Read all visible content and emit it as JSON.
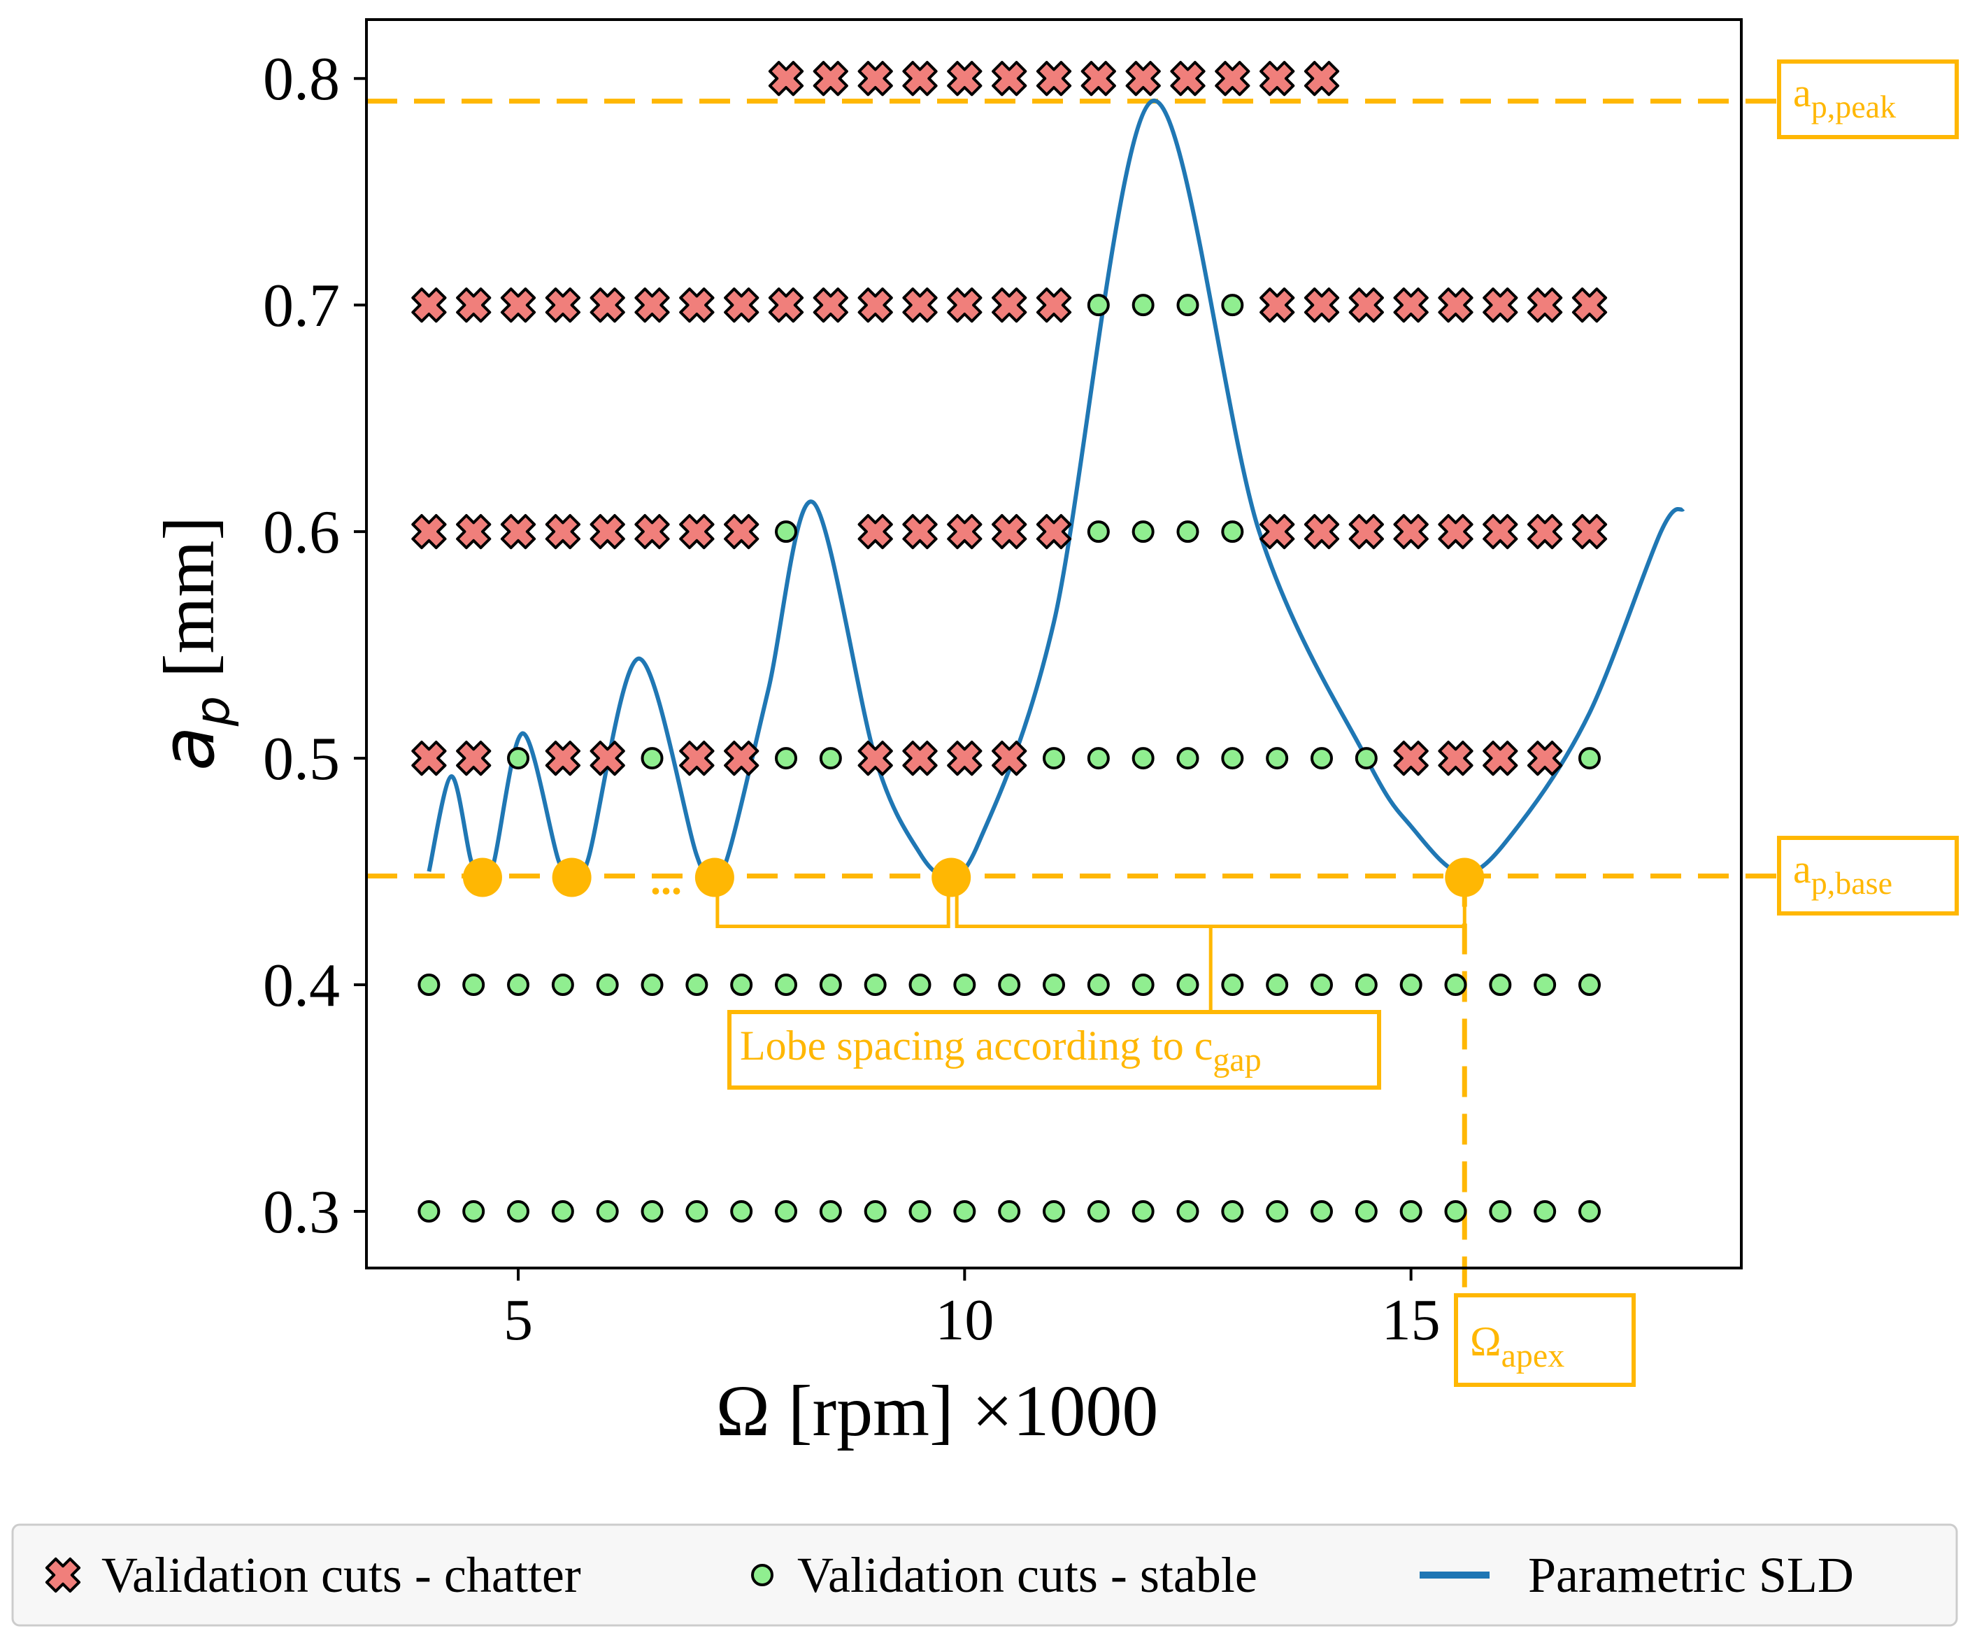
{
  "chart_data": {
    "type": "scatter",
    "title": "",
    "xlabel": "Ω [rpm] ×1000",
    "ylabel_symbol": "a",
    "ylabel_subscript": "p",
    "ylabel_unit": " [mm]",
    "xlim": [
      3.3,
      18.7
    ],
    "ylim": [
      0.275,
      0.826
    ],
    "x_ticks": [
      5,
      10,
      15
    ],
    "x_tick_labels": [
      "5",
      "10",
      "15"
    ],
    "y_ticks": [
      0.3,
      0.4,
      0.5,
      0.6,
      0.7,
      0.8
    ],
    "y_tick_labels": [
      "0.3",
      "0.4",
      "0.5",
      "0.6",
      "0.7",
      "0.8"
    ],
    "grid": false,
    "legend_position": "bottom",
    "series": [
      {
        "name": "Validation cuts - chatter",
        "marker": "x",
        "color": "#f07f7b",
        "rows": [
          {
            "ap": 0.8,
            "x": [
              8,
              8.5,
              9,
              9.5,
              10,
              10.5,
              11,
              11.5,
              12,
              12.5,
              13,
              13.5,
              14
            ]
          },
          {
            "ap": 0.7,
            "x": [
              4,
              4.5,
              5,
              5.5,
              6,
              6.5,
              7,
              7.5,
              8,
              8.5,
              9,
              9.5,
              10,
              10.5,
              11,
              13.5,
              14,
              14.5,
              15,
              15.5,
              16,
              16.5,
              17
            ]
          },
          {
            "ap": 0.6,
            "x": [
              4,
              4.5,
              5,
              5.5,
              6,
              6.5,
              7,
              7.5,
              9,
              9.5,
              10,
              10.5,
              11,
              13.5,
              14,
              14.5,
              15,
              15.5,
              16,
              16.5,
              17
            ]
          },
          {
            "ap": 0.5,
            "x": [
              4,
              4.5,
              5.5,
              6,
              7,
              7.5,
              9,
              9.5,
              10,
              10.5,
              15,
              15.5,
              16,
              16.5
            ]
          }
        ]
      },
      {
        "name": "Validation cuts - stable",
        "marker": "o",
        "color": "#90ee90",
        "rows": [
          {
            "ap": 0.7,
            "x": [
              11.5,
              12,
              12.5,
              13
            ]
          },
          {
            "ap": 0.6,
            "x": [
              8,
              11.5,
              12,
              12.5,
              13
            ]
          },
          {
            "ap": 0.5,
            "x": [
              5,
              6.5,
              8,
              8.5,
              11,
              11.5,
              12,
              12.5,
              13,
              13.5,
              14,
              14.5,
              17
            ]
          },
          {
            "ap": 0.4,
            "x": [
              4,
              4.5,
              5,
              5.5,
              6,
              6.5,
              7,
              7.5,
              8,
              8.5,
              9,
              9.5,
              10,
              10.5,
              11,
              11.5,
              12,
              12.5,
              13,
              13.5,
              14,
              14.5,
              15,
              15.5,
              16,
              16.5,
              17
            ]
          },
          {
            "ap": 0.3,
            "x": [
              4,
              4.5,
              5,
              5.5,
              6,
              6.5,
              7,
              7.5,
              8,
              8.5,
              9,
              9.5,
              10,
              10.5,
              11,
              11.5,
              12,
              12.5,
              13,
              13.5,
              14,
              14.5,
              15,
              15.5,
              16,
              16.5,
              17
            ]
          }
        ]
      },
      {
        "name": "Parametric SLD",
        "type": "line",
        "color": "#1f77b4",
        "points": [
          [
            4.0,
            0.45
          ],
          [
            4.25,
            0.492
          ],
          [
            4.47,
            0.455
          ],
          [
            4.58,
            0.449
          ],
          [
            4.72,
            0.453
          ],
          [
            5.05,
            0.511
          ],
          [
            5.45,
            0.455
          ],
          [
            5.6,
            0.449
          ],
          [
            5.78,
            0.455
          ],
          [
            6.35,
            0.544
          ],
          [
            7.0,
            0.457
          ],
          [
            7.18,
            0.449
          ],
          [
            7.35,
            0.457
          ],
          [
            7.8,
            0.53
          ],
          [
            8.3,
            0.613
          ],
          [
            9.0,
            0.5
          ],
          [
            9.5,
            0.458
          ],
          [
            9.8,
            0.449
          ],
          [
            10.15,
            0.462
          ],
          [
            11.0,
            0.56
          ],
          [
            12.1,
            0.79
          ],
          [
            13.3,
            0.6
          ],
          [
            14.5,
            0.5
          ],
          [
            15.0,
            0.47
          ],
          [
            15.6,
            0.449
          ],
          [
            16.2,
            0.47
          ],
          [
            17.0,
            0.52
          ],
          [
            17.8,
            0.6
          ],
          [
            18.05,
            0.61
          ]
        ]
      }
    ],
    "reference_lines": {
      "ap_peak": 0.79,
      "ap_base": 0.448,
      "omega_apex": 15.6
    },
    "lobe_minima_x": [
      4.6,
      5.6,
      7.2,
      9.85,
      15.6
    ],
    "annotations": {
      "ap_peak_main": "a",
      "ap_peak_sub": "p,peak",
      "ap_base_main": "a",
      "ap_base_sub": "p,base",
      "omega_apex_main": "Ω",
      "omega_apex_sub": "apex",
      "lobe_spacing_main": "Lobe spacing according to c",
      "lobe_spacing_sub": "gap",
      "ellipsis": "..."
    },
    "colors": {
      "annotation": "#ffb703",
      "chatter": "#f07f7b",
      "stable": "#90ee90",
      "sld": "#1f77b4"
    }
  }
}
